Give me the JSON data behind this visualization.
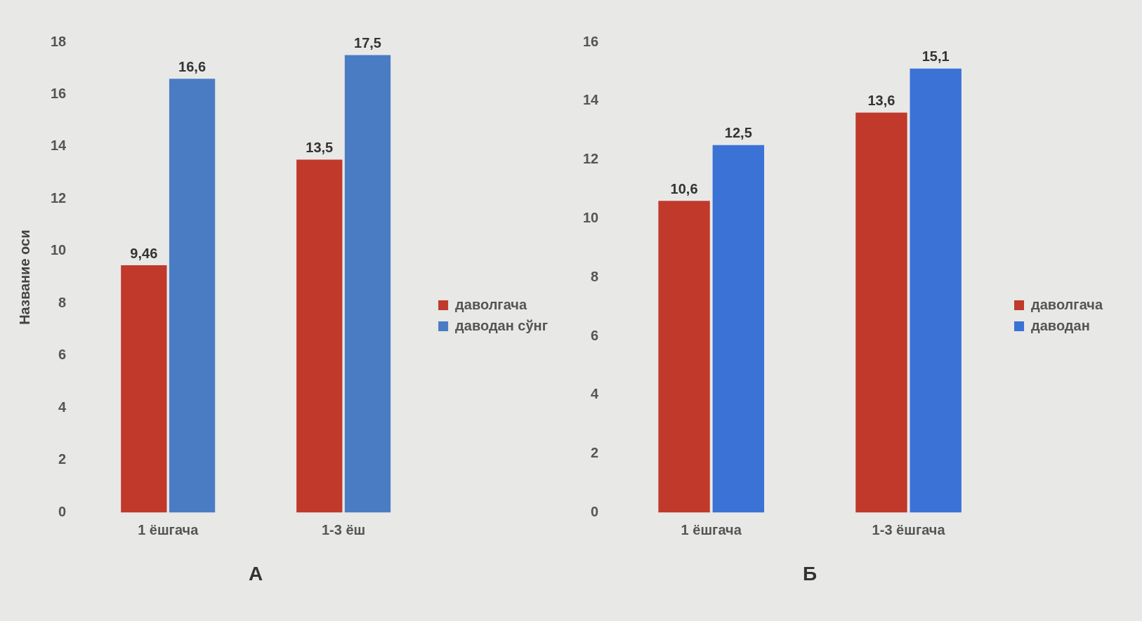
{
  "chart_data": [
    {
      "type": "bar",
      "xlabel": "А",
      "ylabel": "Название оси",
      "categories": [
        "1 ёшгача",
        "1-3 ёш"
      ],
      "series": [
        {
          "name": "даволгача",
          "color": "#c0392b",
          "values": [
            9.46,
            13.5
          ],
          "value_labels": [
            "9,46",
            "13,5"
          ]
        },
        {
          "name": "даводан сўнг",
          "color": "#4a7cc4",
          "values": [
            16.6,
            17.5
          ],
          "value_labels": [
            "16,6",
            "17,5"
          ]
        }
      ],
      "ylim": [
        0,
        18
      ],
      "yticks": [
        0,
        2,
        4,
        6,
        8,
        10,
        12,
        14,
        16,
        18
      ],
      "grid": false,
      "legend": "right"
    },
    {
      "type": "bar",
      "xlabel": "Б",
      "categories": [
        "1 ёшгача",
        "1-3 ёшгача"
      ],
      "series": [
        {
          "name": "даволгача",
          "color": "#c0392b",
          "values": [
            10.6,
            13.6
          ],
          "value_labels": [
            "10,6",
            "13,6"
          ]
        },
        {
          "name": "даводан",
          "color": "#3a72d6",
          "values": [
            12.5,
            15.1
          ],
          "value_labels": [
            "12,5",
            "15,1"
          ]
        }
      ],
      "ylim": [
        0,
        16
      ],
      "yticks": [
        0,
        2,
        4,
        6,
        8,
        10,
        12,
        14,
        16
      ],
      "grid": false,
      "legend": "right"
    }
  ]
}
